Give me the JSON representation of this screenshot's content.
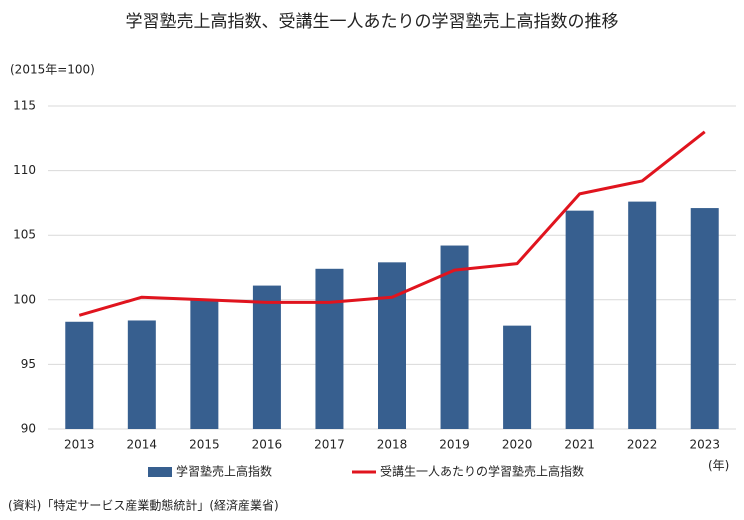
{
  "chart_data": {
    "type": "bar",
    "title": "学習塾売上高指数、受講生一人あたりの学習塾売上高指数の推移",
    "y_unit": "(2015年=100)",
    "x_unit": "(年)",
    "source": "(資料)「特定サービス産業動態統計」(経済産業省)",
    "categories": [
      "2013",
      "2014",
      "2015",
      "2016",
      "2017",
      "2018",
      "2019",
      "2020",
      "2021",
      "2022",
      "2023"
    ],
    "series": [
      {
        "name": "学習塾売上高指数",
        "type": "bar",
        "color": "#375f8f",
        "values": [
          98.3,
          98.4,
          100.0,
          101.1,
          102.4,
          102.9,
          104.2,
          98.0,
          106.9,
          107.6,
          107.1
        ]
      },
      {
        "name": "受講生一人あたりの学習塾売上高指数",
        "type": "line",
        "color": "#e0141e",
        "values": [
          98.8,
          100.2,
          100.0,
          99.8,
          99.8,
          100.2,
          102.3,
          102.8,
          108.2,
          109.2,
          113.0
        ]
      }
    ],
    "ylim": [
      90,
      115
    ],
    "yticks": [
      90,
      95,
      100,
      105,
      110,
      115
    ],
    "grid": true
  }
}
